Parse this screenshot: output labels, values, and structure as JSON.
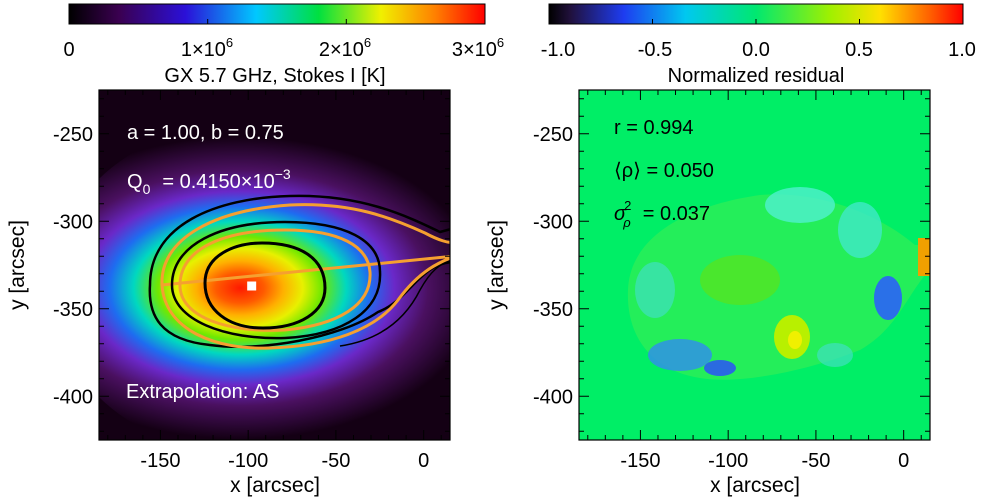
{
  "chart_data": [
    {
      "type": "heatmap",
      "title": "GX 5.7 GHz, Stokes I [K]",
      "xlabel": "x [arcsec]",
      "ylabel": "y [arcsec]",
      "xlim": [
        -185,
        15
      ],
      "ylim": [
        -425,
        -225
      ],
      "x_ticks": [
        -150,
        -100,
        -50,
        0
      ],
      "x_tick_labels": [
        "-150",
        "-100",
        "-50",
        "0"
      ],
      "y_ticks": [
        -250,
        -300,
        -350,
        -400
      ],
      "y_tick_labels": [
        "-250",
        "-300",
        "-350",
        "-400"
      ],
      "colorbar": {
        "colormap": "rainbow (black-purple-blue-cyan-green-yellow-red)",
        "range": [
          0,
          3000000
        ],
        "ticks": [
          0,
          1000000,
          2000000,
          3000000
        ],
        "tick_mantissas": [
          "0",
          "1×10",
          "2×10",
          "3×10"
        ],
        "tick_exponent": "6"
      },
      "annotations": {
        "params": "a =  1.00, b =  0.75",
        "q_label": "Q",
        "q_sub": "0",
        "q_value": "=   0.4150×10",
        "q_exp": "−3",
        "extrapolation": "Extrapolation: AS"
      },
      "source_peak": {
        "x": -98,
        "y": -337
      },
      "contour_colors": [
        "#000000",
        "#f5a030"
      ]
    },
    {
      "type": "heatmap",
      "title": "Normalized residual",
      "xlabel": "x [arcsec]",
      "ylabel": "y [arcsec]",
      "xlim": [
        -185,
        15
      ],
      "ylim": [
        -425,
        -225
      ],
      "x_ticks": [
        -150,
        -100,
        -50,
        0
      ],
      "x_tick_labels": [
        "-150",
        "-100",
        "-50",
        "0"
      ],
      "y_ticks": [
        -250,
        -300,
        -350,
        -400
      ],
      "y_tick_labels": [
        "-250",
        "-300",
        "-350",
        "-400"
      ],
      "colorbar": {
        "colormap": "blue-cyan-green-yellow-red",
        "range": [
          -1.0,
          1.0
        ],
        "ticks": [
          -1.0,
          -0.5,
          0.0,
          0.5,
          1.0
        ],
        "tick_labels": [
          "-1.0",
          "-0.5",
          "0.0",
          "0.5",
          "1.0"
        ]
      },
      "annotations": {
        "r": "r = 0.994",
        "rho_mean": "⟨ρ⟩ =  0.050",
        "sigma_main": "σ",
        "sigma_sub": "ρ",
        "sigma_sup": "2",
        "sigma_value": "=  0.037"
      }
    }
  ],
  "colors": {
    "background_black": "#140014",
    "residual_green": "#00ee66",
    "orange_contour": "#f5a030"
  }
}
